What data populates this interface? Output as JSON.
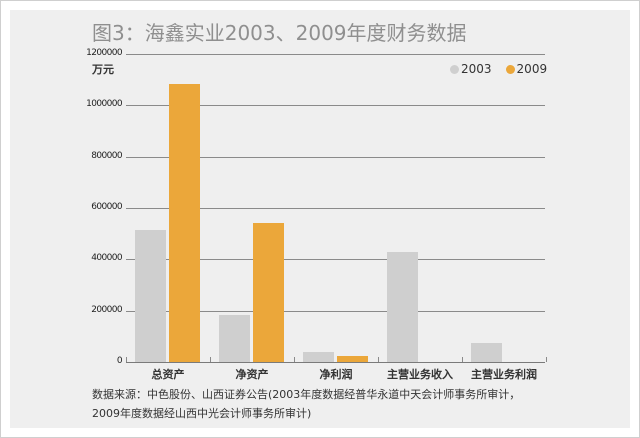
{
  "title": "图3：海鑫实业2003、2009年度财务数据",
  "unit": "万元",
  "legend": [
    {
      "label": "2003",
      "color": "#cfcfcf"
    },
    {
      "label": "2009",
      "color": "#eba73a"
    }
  ],
  "y_ticks": [
    "1200000",
    "1000000",
    "800000",
    "600000",
    "400000",
    "200000",
    "0"
  ],
  "x_labels": [
    "总资产",
    "净资产",
    "净利润",
    "主营业务收入",
    "主营业务利润"
  ],
  "source": {
    "line1": "数据来源：中色股份、山西证券公告(2003年度数据经普华永道中天会计师事务所审计，",
    "line2": "2009年度数据经山西中光会计师事务所审计)"
  },
  "colors": {
    "series_2003": "#cfcfcf",
    "series_2009": "#eba73a",
    "title": "#8f8f8f",
    "panel_bg": "#efefef"
  },
  "chart_data": {
    "type": "bar",
    "title": "图3：海鑫实业2003、2009年度财务数据",
    "xlabel": "",
    "ylabel": "万元",
    "ylim": [
      0,
      1200000
    ],
    "yticks": [
      0,
      200000,
      400000,
      600000,
      800000,
      1000000,
      1200000
    ],
    "grid": true,
    "legend_position": "top-right",
    "categories": [
      "总资产",
      "净资产",
      "净利润",
      "主营业务收入",
      "主营业务利润"
    ],
    "series": [
      {
        "name": "2003",
        "color": "#cfcfcf",
        "values": [
          515000,
          183000,
          39000,
          429000,
          74000
        ]
      },
      {
        "name": "2009",
        "color": "#eba73a",
        "values": [
          1084000,
          542000,
          23000,
          null,
          null
        ]
      }
    ],
    "annotations": [
      "数据来源：中色股份、山西证券公告(2003年度数据经普华永道中天会计师事务所审计，2009年度数据经山西中光会计师事务所审计)"
    ]
  }
}
